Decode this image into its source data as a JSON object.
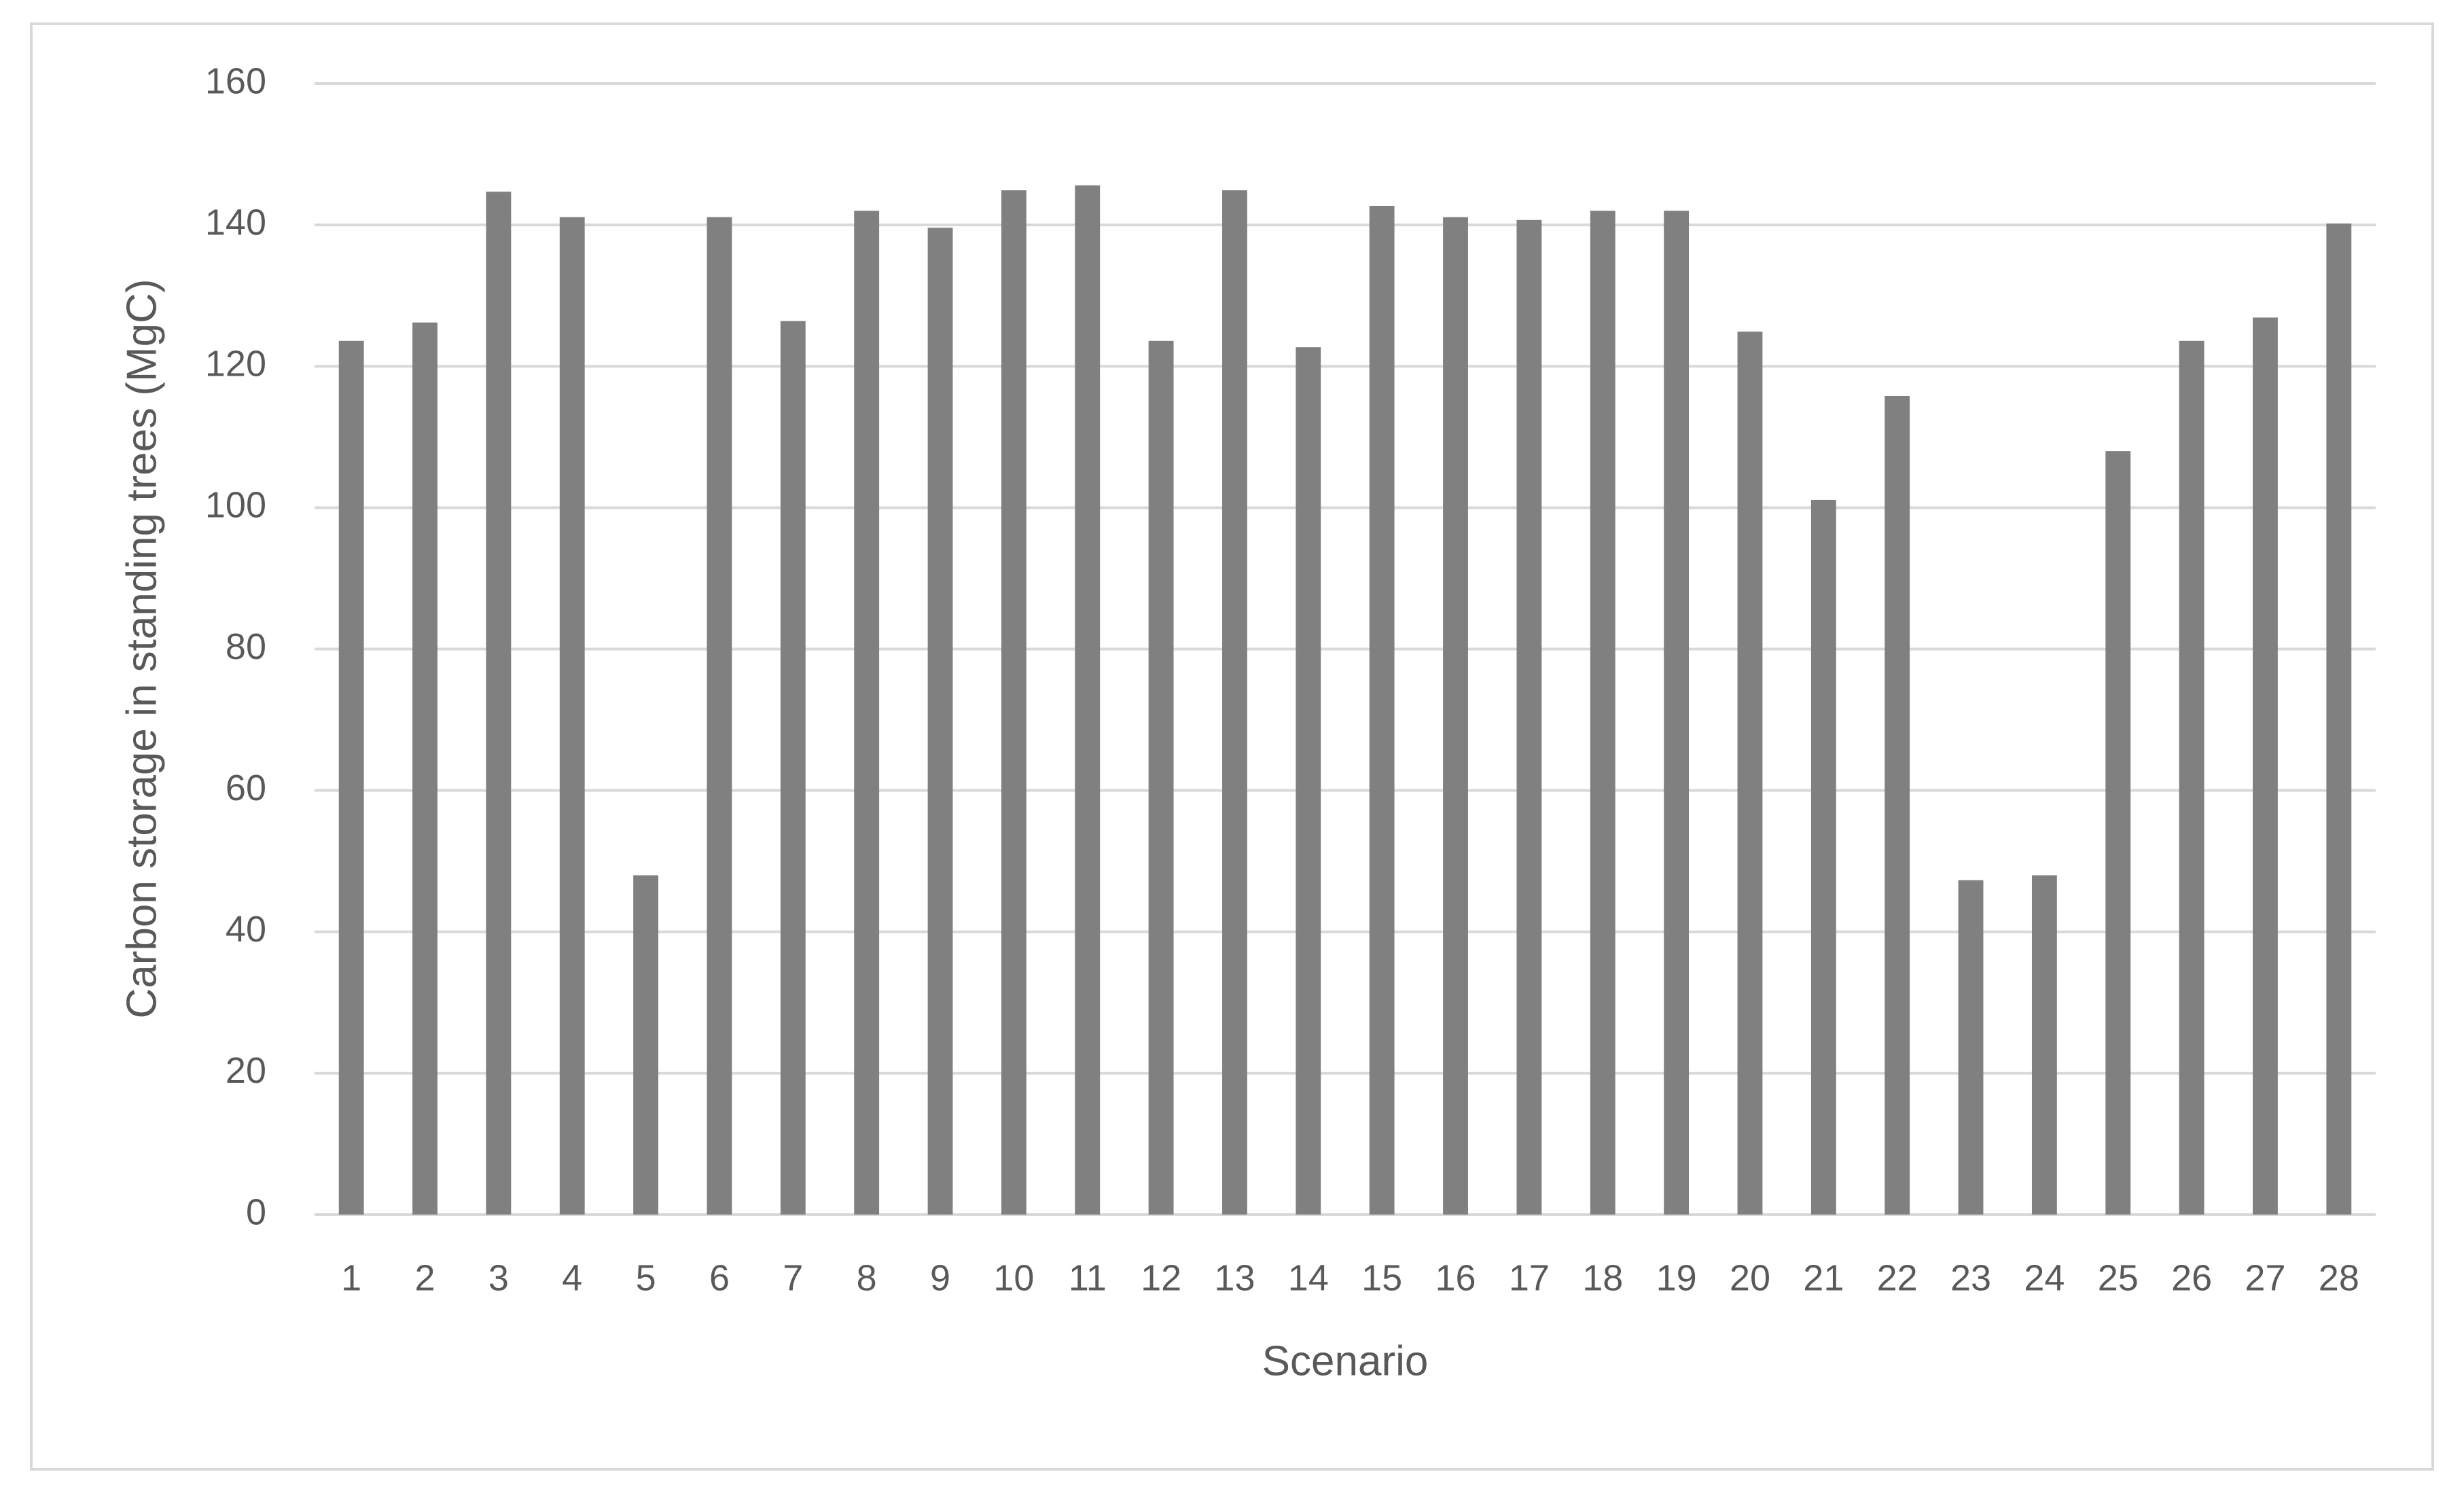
{
  "chart_data": {
    "type": "bar",
    "x_label": "Scenario",
    "y_label": "Carbon storage in standing trees (MgC)",
    "categories": [
      "1",
      "2",
      "3",
      "4",
      "5",
      "6",
      "7",
      "8",
      "9",
      "10",
      "11",
      "12",
      "13",
      "14",
      "15",
      "16",
      "17",
      "18",
      "19",
      "20",
      "21",
      "22",
      "23",
      "24",
      "25",
      "26",
      "27",
      "28"
    ],
    "values": [
      123.6,
      126.2,
      144.7,
      141.1,
      48,
      141.1,
      126.4,
      142,
      139.6,
      144.9,
      145.6,
      123.6,
      144.9,
      122.7,
      142.7,
      141.1,
      140.7,
      142,
      142,
      124.9,
      101.1,
      115.8,
      47.3,
      48,
      108,
      123.6,
      126.9,
      140.2
    ],
    "color": "#808080",
    "ylim": [
      0,
      160
    ],
    "yticks": [
      0,
      20,
      40,
      60,
      80,
      100,
      120,
      140,
      160
    ],
    "grid": true
  }
}
